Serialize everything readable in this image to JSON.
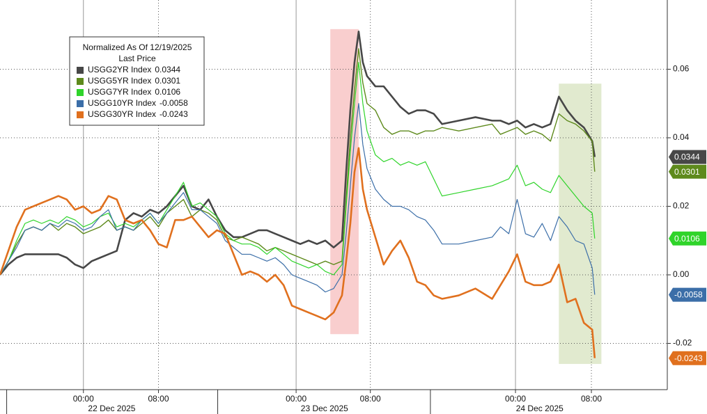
{
  "chart_data": {
    "type": "line",
    "legend_title": "Normalized As Of 12/19/2025",
    "legend_subtitle": "Last Price",
    "x": [
      0,
      1,
      2,
      3,
      4,
      5,
      6,
      7,
      8,
      9,
      10,
      11,
      12,
      13,
      14,
      15,
      16,
      17,
      18,
      19,
      20,
      21,
      22,
      23,
      24,
      25,
      26,
      27,
      28,
      29,
      30,
      31,
      32,
      33,
      34,
      35,
      36,
      37,
      38,
      39,
      40,
      41,
      41.5,
      42,
      42.5,
      43,
      43.5,
      44,
      45,
      46,
      47,
      48,
      49,
      50,
      51,
      52,
      53,
      55,
      57,
      59,
      60,
      61,
      62,
      63,
      64,
      65,
      66,
      67,
      68,
      69,
      70,
      71,
      71.3
    ],
    "xlim": [
      0,
      80
    ],
    "xticks": [
      {
        "value": 10,
        "label": "00:00"
      },
      {
        "value": 19,
        "label": "08:00"
      },
      {
        "value": 35.5,
        "label": "00:00"
      },
      {
        "value": 44.4,
        "label": "08:00"
      },
      {
        "value": 61.8,
        "label": "00:00"
      },
      {
        "value": 70.9,
        "label": "08:00"
      }
    ],
    "date_ticks": [
      {
        "value": 13.4,
        "label": "22 Dec 2025"
      },
      {
        "value": 38.9,
        "label": "23 Dec 2025"
      },
      {
        "value": 64.7,
        "label": "24 Dec 2025"
      }
    ],
    "day_breaks": [
      0.8,
      26.1,
      51.6
    ],
    "ylim": [
      -0.0335,
      0.0802
    ],
    "yticks": [
      -0.02,
      {
        "value": 0,
        "label": "0.00"
      },
      0.02,
      0.04,
      0.06
    ],
    "grid": true,
    "highlights": [
      {
        "x": [
          39.6,
          43.0
        ],
        "y": [
          -0.0173,
          0.0717
        ],
        "color": "#f4a6a6"
      },
      {
        "x": [
          67.0,
          72.1
        ],
        "y": [
          -0.026,
          0.0558
        ],
        "color": "#c9d9a8"
      }
    ],
    "series": [
      {
        "name": "USGG2YR Index",
        "last": 0.0344,
        "color": "#474747",
        "width": 2.6,
        "values": [
          0,
          0.003,
          0.005,
          0.006,
          0.006,
          0.006,
          0.006,
          0.006,
          0.005,
          0.003,
          0.002,
          0.004,
          0.005,
          0.006,
          0.007,
          0.016,
          0.018,
          0.017,
          0.019,
          0.018,
          0.02,
          0.023,
          0.026,
          0.02,
          0.019,
          0.022,
          0.017,
          0.013,
          0.011,
          0.011,
          0.012,
          0.013,
          0.013,
          0.012,
          0.011,
          0.01,
          0.009,
          0.01,
          0.009,
          0.01,
          0.008,
          0.01,
          0.03,
          0.048,
          0.062,
          0.071,
          0.062,
          0.058,
          0.055,
          0.055,
          0.052,
          0.049,
          0.047,
          0.048,
          0.048,
          0.047,
          0.044,
          0.045,
          0.046,
          0.045,
          0.045,
          0.044,
          0.045,
          0.043,
          0.044,
          0.043,
          0.044,
          0.052,
          0.048,
          0.045,
          0.043,
          0.039,
          0.0344
        ]
      },
      {
        "name": "USGG5YR Index",
        "last": 0.0301,
        "color": "#5e8a1c",
        "width": 1.4,
        "values": [
          0,
          0.004,
          0.009,
          0.013,
          0.014,
          0.013,
          0.015,
          0.013,
          0.015,
          0.014,
          0.012,
          0.013,
          0.014,
          0.016,
          0.013,
          0.014,
          0.013,
          0.015,
          0.017,
          0.014,
          0.018,
          0.02,
          0.022,
          0.017,
          0.019,
          0.018,
          0.016,
          0.011,
          0.01,
          0.011,
          0.01,
          0.009,
          0.007,
          0.008,
          0.007,
          0.006,
          0.005,
          0.004,
          0.003,
          0.004,
          0.003,
          0.004,
          0.022,
          0.04,
          0.054,
          0.066,
          0.056,
          0.05,
          0.048,
          0.043,
          0.041,
          0.042,
          0.042,
          0.041,
          0.042,
          0.042,
          0.043,
          0.042,
          0.043,
          0.044,
          0.041,
          0.042,
          0.043,
          0.041,
          0.042,
          0.041,
          0.039,
          0.047,
          0.045,
          0.044,
          0.042,
          0.039,
          0.0301
        ]
      },
      {
        "name": "USGG7YR Index",
        "last": 0.0106,
        "color": "#2fd42a",
        "width": 1.2,
        "values": [
          0,
          0.004,
          0.01,
          0.015,
          0.016,
          0.015,
          0.016,
          0.015,
          0.017,
          0.016,
          0.014,
          0.015,
          0.017,
          0.018,
          0.014,
          0.015,
          0.014,
          0.016,
          0.018,
          0.015,
          0.019,
          0.023,
          0.027,
          0.02,
          0.021,
          0.019,
          0.017,
          0.012,
          0.01,
          0.009,
          0.009,
          0.008,
          0.006,
          0.008,
          0.006,
          0.004,
          0.003,
          0.002,
          0.003,
          0.001,
          0.0,
          0.003,
          0.02,
          0.036,
          0.05,
          0.062,
          0.05,
          0.042,
          0.035,
          0.033,
          0.034,
          0.032,
          0.033,
          0.032,
          0.033,
          0.028,
          0.023,
          0.024,
          0.025,
          0.026,
          0.027,
          0.028,
          0.032,
          0.026,
          0.027,
          0.025,
          0.024,
          0.029,
          0.026,
          0.023,
          0.02,
          0.018,
          0.0106
        ]
      },
      {
        "name": "USGG10YR Index",
        "last": -0.0058,
        "color": "#3b6ea8",
        "width": 1.2,
        "values": [
          0,
          0.004,
          0.008,
          0.013,
          0.014,
          0.013,
          0.015,
          0.014,
          0.016,
          0.015,
          0.013,
          0.014,
          0.017,
          0.019,
          0.013,
          0.014,
          0.013,
          0.016,
          0.018,
          0.015,
          0.018,
          0.021,
          0.024,
          0.019,
          0.019,
          0.017,
          0.015,
          0.01,
          0.008,
          0.006,
          0.006,
          0.005,
          0.004,
          0.005,
          0.003,
          0.0,
          -0.001,
          -0.002,
          -0.003,
          -0.005,
          -0.004,
          0.0,
          0.012,
          0.026,
          0.04,
          0.05,
          0.038,
          0.031,
          0.025,
          0.022,
          0.02,
          0.02,
          0.019,
          0.017,
          0.016,
          0.013,
          0.009,
          0.009,
          0.01,
          0.011,
          0.014,
          0.012,
          0.022,
          0.012,
          0.011,
          0.015,
          0.01,
          0.017,
          0.014,
          0.01,
          0.009,
          0.002,
          -0.0058
        ]
      },
      {
        "name": "USGG30YR Index",
        "last": -0.0243,
        "color": "#e0701e",
        "width": 2.6,
        "values": [
          0,
          0.007,
          0.014,
          0.019,
          0.02,
          0.021,
          0.022,
          0.023,
          0.022,
          0.019,
          0.02,
          0.018,
          0.019,
          0.023,
          0.022,
          0.016,
          0.015,
          0.016,
          0.013,
          0.009,
          0.008,
          0.016,
          0.016,
          0.017,
          0.014,
          0.011,
          0.013,
          0.012,
          0.006,
          0.0,
          0.001,
          0.0,
          -0.002,
          0.0,
          -0.003,
          -0.009,
          -0.01,
          -0.011,
          -0.012,
          -0.013,
          -0.011,
          -0.006,
          0.004,
          0.015,
          0.03,
          0.037,
          0.025,
          0.019,
          0.011,
          0.003,
          0.007,
          0.01,
          0.005,
          -0.002,
          -0.003,
          -0.006,
          -0.007,
          -0.006,
          -0.004,
          -0.007,
          -0.003,
          0.001,
          0.006,
          -0.002,
          -0.003,
          -0.003,
          -0.002,
          0.003,
          -0.008,
          -0.007,
          -0.014,
          -0.016,
          -0.0243
        ]
      }
    ]
  }
}
